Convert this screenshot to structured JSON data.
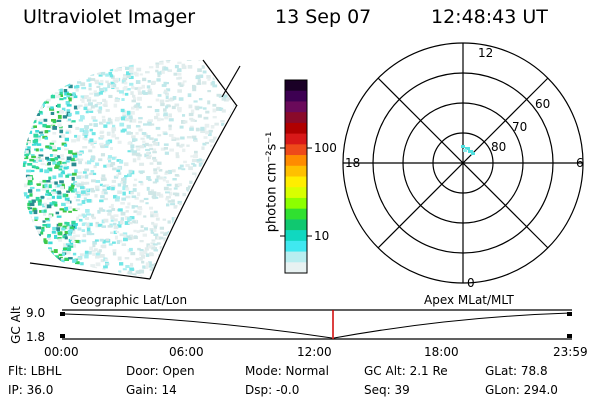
{
  "header": {
    "instrument": "Ultraviolet Imager",
    "date": "13 Sep 07",
    "time": "12:48:43 UT"
  },
  "colorbar": {
    "unit_label": "photon cm⁻²s⁻¹",
    "tick_labels": [
      "100",
      "10"
    ],
    "colors": [
      "#1a0026",
      "#3d0052",
      "#6a0a5a",
      "#8a0a2a",
      "#b00000",
      "#d81818",
      "#ee4a1a",
      "#ff8c00",
      "#ffc000",
      "#ffee00",
      "#d8ff00",
      "#8cff00",
      "#30e030",
      "#10c870",
      "#10d8c0",
      "#40e8f0",
      "#b8eef0",
      "#e8f2f2"
    ]
  },
  "polar": {
    "lat_labels": [
      "60",
      "70",
      "80"
    ],
    "mlt_labels": {
      "top": "12",
      "left": "18",
      "right": "6",
      "bottom": "0"
    }
  },
  "timeline": {
    "left_label": "Geographic Lat/Lon",
    "right_label": "Apex MLat/MLT",
    "axis_label": "GC Alt",
    "y_labels": [
      "9.0",
      "1.8"
    ],
    "x_labels": [
      "00:00",
      "06:00",
      "12:00",
      "18:00",
      "23:59"
    ]
  },
  "params": {
    "filter": "Flt: LBHL",
    "ip": "IP: 36.0",
    "door": "Door: Open",
    "gain": "Gain: 14",
    "mode": "Mode: Normal",
    "dsp": "Dsp:   -0.0",
    "gc_alt": "GC Alt: 2.1 Re",
    "seq": "Seq: 39",
    "glat": "GLat:  78.8",
    "glon": "GLon: 294.0"
  },
  "colors": {
    "marker": "#d00000",
    "line": "#000000",
    "aurora_green": "#30d860",
    "aurora_cyan": "#50e0e0"
  }
}
